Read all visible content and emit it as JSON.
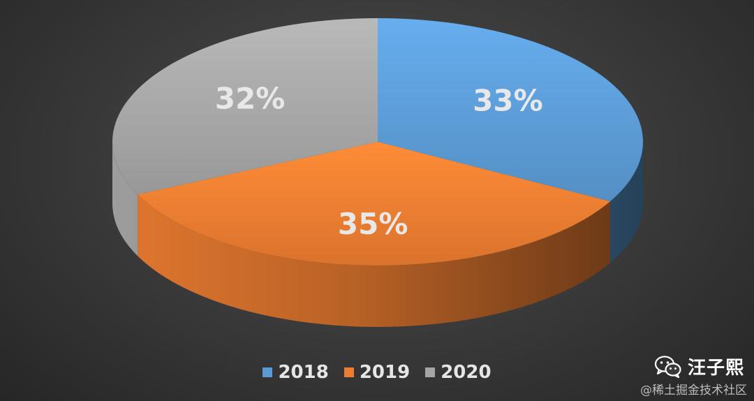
{
  "chart_data": {
    "type": "pie",
    "style": "3d",
    "categories": [
      "2018",
      "2019",
      "2020"
    ],
    "values": [
      33,
      35,
      32
    ],
    "data_labels": [
      "33%",
      "35%",
      "32%"
    ],
    "colors": [
      "#5b9bd5",
      "#ed7d31",
      "#a5a5a5"
    ],
    "legend": {
      "position": "bottom",
      "entries": [
        "2018",
        "2019",
        "2020"
      ]
    }
  },
  "watermark": {
    "name": "汪子熙",
    "site": "@稀土掘金技术社区",
    "icon": "wechat-icon"
  }
}
